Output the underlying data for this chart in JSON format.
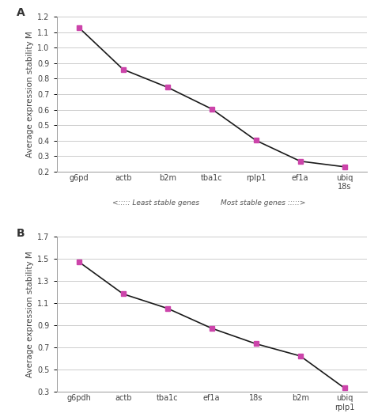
{
  "panel_A": {
    "x_labels": [
      "g6pd",
      "actb",
      "b2m",
      "tba1c",
      "rplp1",
      "ef1a",
      "ubiq\n18s"
    ],
    "y_values": [
      1.13,
      0.86,
      0.745,
      0.605,
      0.402,
      0.268,
      0.232
    ],
    "ylim": [
      0.2,
      1.2
    ],
    "yticks": [
      0.2,
      0.3,
      0.4,
      0.5,
      0.6,
      0.7,
      0.8,
      0.9,
      1.0,
      1.1,
      1.2
    ],
    "label": "A"
  },
  "panel_B": {
    "x_labels": [
      "g6pdh",
      "actb",
      "tba1c",
      "ef1a",
      "18s",
      "b2m",
      "ubiq\nrplp1"
    ],
    "y_values": [
      1.475,
      1.185,
      1.055,
      0.875,
      0.735,
      0.625,
      0.335
    ],
    "ylim": [
      0.3,
      1.7
    ],
    "yticks": [
      0.3,
      0.5,
      0.7,
      0.9,
      1.1,
      1.3,
      1.5,
      1.7
    ],
    "label": "B"
  },
  "marker_color": "#CC44AA",
  "line_color": "#1a1a1a",
  "marker": "s",
  "marker_size": 5,
  "ylabel": "Average expression stability M",
  "xlabel_left": "<::::: Least stable genes",
  "xlabel_right": "Most stable genes :::::>",
  "grid_color": "#cccccc",
  "background_color": "#ffffff",
  "tick_fontsize": 7,
  "label_fontsize": 7.5,
  "panel_label_fontsize": 10
}
